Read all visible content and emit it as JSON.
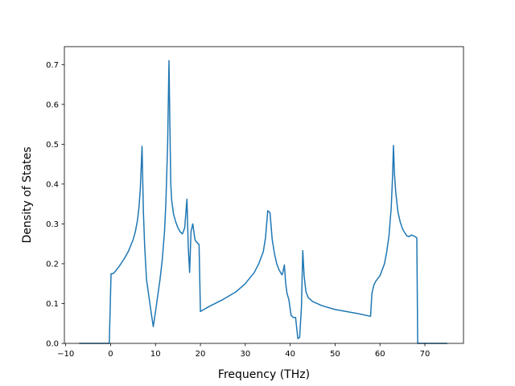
{
  "chart_data": {
    "type": "line",
    "title": "",
    "xlabel": "Frequency (THz)",
    "ylabel": "Density of States",
    "xlim": [
      -10.3,
      78.6
    ],
    "ylim": [
      0.0,
      0.745
    ],
    "grid": false,
    "legend": "none",
    "line_color": "#1f77b4",
    "x_ticks": [
      -10,
      0,
      10,
      20,
      30,
      40,
      50,
      60,
      70
    ],
    "x_tick_labels": [
      "−10",
      "0",
      "10",
      "20",
      "30",
      "40",
      "50",
      "60",
      "70"
    ],
    "y_ticks": [
      0.0,
      0.1,
      0.2,
      0.3,
      0.4,
      0.5,
      0.6,
      0.7
    ],
    "y_tick_labels": [
      "0.0",
      "0.1",
      "0.2",
      "0.3",
      "0.4",
      "0.5",
      "0.6",
      "0.7"
    ],
    "series": [
      {
        "x": [
          -7,
          -0.3,
          0.1,
          0.5,
          1,
          2,
          3,
          4,
          5,
          5.5,
          6,
          6.3,
          6.6,
          6.8,
          7,
          7.3,
          7.6,
          8,
          8.5,
          9,
          9.5,
          10,
          10.5,
          11,
          11.5,
          12,
          12.3,
          12.7,
          13,
          13.2,
          13.4,
          13.6,
          14,
          14.5,
          15,
          15.5,
          16,
          16.5,
          17,
          17.3,
          17.6,
          17.9,
          18.3,
          18.8,
          19.1,
          19.7,
          20,
          20.3,
          22,
          25,
          28,
          30,
          32,
          33,
          34,
          34.5,
          35,
          35.5,
          36,
          36.5,
          37,
          37.5,
          38,
          38.2,
          38.4,
          38.7,
          39,
          39.3,
          39.7,
          40.2,
          40.7,
          41.2,
          41.7,
          42.1,
          42.5,
          42.8,
          43.1,
          43.5,
          44,
          45,
          47,
          50,
          55,
          57.9,
          58.2,
          58.6,
          59,
          60,
          61,
          61.5,
          62,
          62.5,
          62.8,
          63,
          63.2,
          63.5,
          64,
          64.5,
          65,
          65.5,
          66,
          66.5,
          67,
          67.5,
          68.2,
          68.4,
          70,
          75
        ],
        "y": [
          0.0,
          0.0,
          0.175,
          0.175,
          0.18,
          0.195,
          0.212,
          0.232,
          0.26,
          0.28,
          0.31,
          0.34,
          0.385,
          0.44,
          0.495,
          0.33,
          0.24,
          0.16,
          0.12,
          0.08,
          0.042,
          0.08,
          0.12,
          0.16,
          0.21,
          0.28,
          0.35,
          0.5,
          0.71,
          0.55,
          0.4,
          0.36,
          0.325,
          0.305,
          0.29,
          0.28,
          0.275,
          0.29,
          0.362,
          0.24,
          0.178,
          0.28,
          0.3,
          0.26,
          0.255,
          0.248,
          0.08,
          0.082,
          0.093,
          0.11,
          0.13,
          0.15,
          0.178,
          0.2,
          0.23,
          0.265,
          0.333,
          0.328,
          0.26,
          0.225,
          0.2,
          0.185,
          0.175,
          0.172,
          0.18,
          0.197,
          0.15,
          0.125,
          0.11,
          0.07,
          0.065,
          0.065,
          0.012,
          0.015,
          0.09,
          0.233,
          0.17,
          0.13,
          0.115,
          0.105,
          0.095,
          0.085,
          0.075,
          0.068,
          0.125,
          0.145,
          0.155,
          0.17,
          0.2,
          0.23,
          0.27,
          0.34,
          0.42,
          0.497,
          0.43,
          0.38,
          0.33,
          0.305,
          0.288,
          0.278,
          0.27,
          0.268,
          0.272,
          0.27,
          0.265,
          0.0,
          0.0,
          0.0
        ]
      }
    ]
  }
}
